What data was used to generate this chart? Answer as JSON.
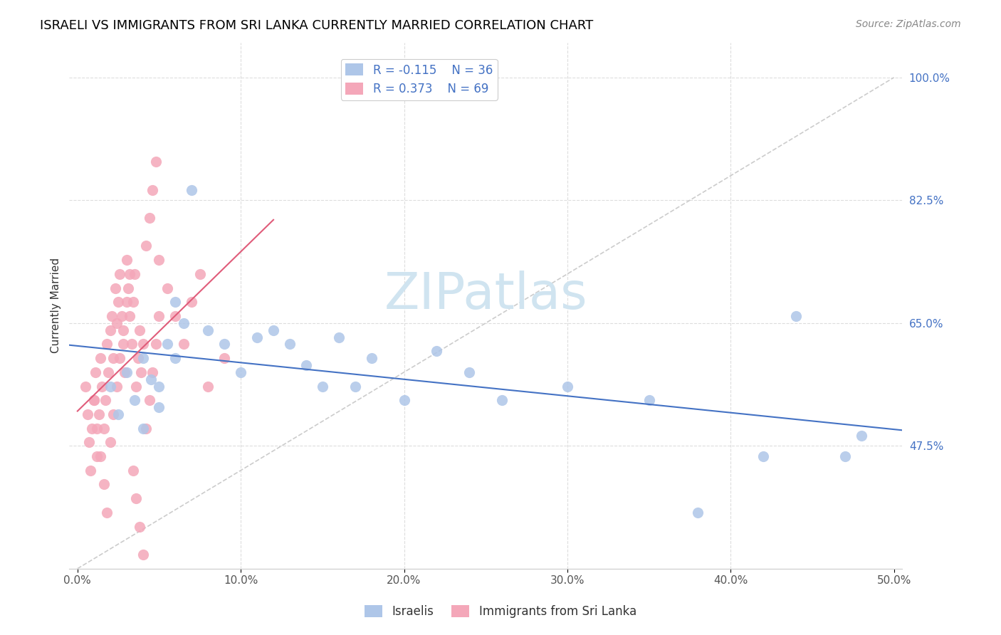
{
  "title": "ISRAELI VS IMMIGRANTS FROM SRI LANKA CURRENTLY MARRIED CORRELATION CHART",
  "source": "Source: ZipAtlas.com",
  "xlabel_bottom": "",
  "ylabel": "Currently Married",
  "x_ticks": [
    0.0,
    0.1,
    0.2,
    0.3,
    0.4,
    0.5
  ],
  "x_tick_labels": [
    "0.0%",
    "10.0%",
    "20.0%",
    "30.0%",
    "40.0%",
    "50.0%"
  ],
  "y_ticks_right": [
    0.475,
    0.65,
    0.825,
    1.0
  ],
  "y_tick_labels_right": [
    "47.5%",
    "65.0%",
    "82.5%",
    "100.0%"
  ],
  "xlim": [
    -0.005,
    0.505
  ],
  "ylim": [
    0.3,
    1.05
  ],
  "legend_r_israeli": "-0.115",
  "legend_n_israeli": "36",
  "legend_r_srilanka": "0.373",
  "legend_n_srilanka": "69",
  "color_israeli": "#aec6e8",
  "color_srilanka": "#f4a7b9",
  "color_trendline_israeli": "#4472c4",
  "color_trendline_srilanka": "#e05c7a",
  "color_diagonal": "#cccccc",
  "watermark": "ZIPatlas",
  "watermark_color": "#d0e4f0",
  "israeli_x": [
    0.02,
    0.025,
    0.03,
    0.035,
    0.04,
    0.04,
    0.045,
    0.05,
    0.05,
    0.055,
    0.06,
    0.06,
    0.065,
    0.07,
    0.08,
    0.09,
    0.1,
    0.11,
    0.12,
    0.13,
    0.14,
    0.15,
    0.16,
    0.17,
    0.18,
    0.2,
    0.22,
    0.24,
    0.26,
    0.3,
    0.35,
    0.38,
    0.42,
    0.44,
    0.47,
    0.48
  ],
  "israeli_y": [
    0.56,
    0.52,
    0.58,
    0.54,
    0.6,
    0.5,
    0.57,
    0.53,
    0.56,
    0.62,
    0.68,
    0.6,
    0.65,
    0.84,
    0.64,
    0.62,
    0.58,
    0.63,
    0.64,
    0.62,
    0.59,
    0.56,
    0.63,
    0.56,
    0.6,
    0.54,
    0.61,
    0.58,
    0.54,
    0.56,
    0.54,
    0.38,
    0.46,
    0.66,
    0.46,
    0.49
  ],
  "srilanka_x": [
    0.005,
    0.006,
    0.007,
    0.008,
    0.009,
    0.01,
    0.011,
    0.012,
    0.013,
    0.014,
    0.015,
    0.016,
    0.017,
    0.018,
    0.019,
    0.02,
    0.021,
    0.022,
    0.023,
    0.024,
    0.025,
    0.026,
    0.027,
    0.028,
    0.029,
    0.03,
    0.031,
    0.032,
    0.033,
    0.034,
    0.035,
    0.036,
    0.037,
    0.038,
    0.039,
    0.04,
    0.042,
    0.044,
    0.046,
    0.048,
    0.05,
    0.055,
    0.06,
    0.065,
    0.07,
    0.075,
    0.08,
    0.09,
    0.01,
    0.012,
    0.014,
    0.016,
    0.018,
    0.02,
    0.022,
    0.024,
    0.026,
    0.028,
    0.03,
    0.032,
    0.034,
    0.036,
    0.038,
    0.04,
    0.042,
    0.044,
    0.046,
    0.048,
    0.05
  ],
  "srilanka_y": [
    0.56,
    0.52,
    0.48,
    0.44,
    0.5,
    0.54,
    0.58,
    0.46,
    0.52,
    0.6,
    0.56,
    0.5,
    0.54,
    0.62,
    0.58,
    0.64,
    0.66,
    0.6,
    0.7,
    0.65,
    0.68,
    0.72,
    0.66,
    0.62,
    0.58,
    0.74,
    0.7,
    0.66,
    0.62,
    0.68,
    0.72,
    0.56,
    0.6,
    0.64,
    0.58,
    0.62,
    0.76,
    0.8,
    0.84,
    0.88,
    0.74,
    0.7,
    0.66,
    0.62,
    0.68,
    0.72,
    0.56,
    0.6,
    0.54,
    0.5,
    0.46,
    0.42,
    0.38,
    0.48,
    0.52,
    0.56,
    0.6,
    0.64,
    0.68,
    0.72,
    0.44,
    0.4,
    0.36,
    0.32,
    0.5,
    0.54,
    0.58,
    0.62,
    0.66
  ]
}
